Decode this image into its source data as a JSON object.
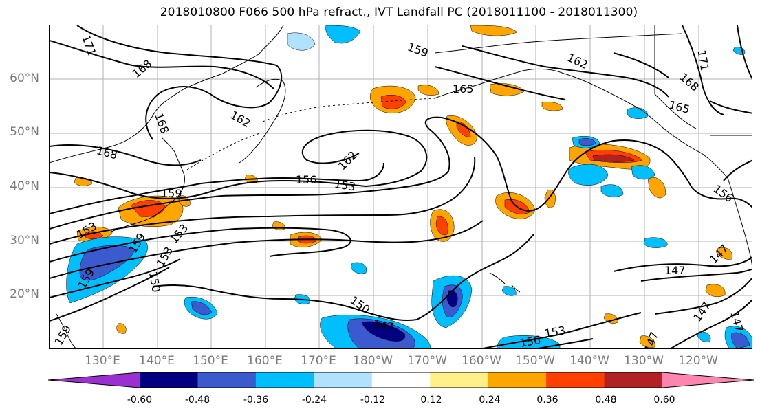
{
  "title": "2018010800 F066 500 hPa refract., IVT Landfall PC (2018011100 - 2018011300)",
  "lat_labels": [
    "60°N",
    "50°N",
    "40°N",
    "30°N",
    "20°N"
  ],
  "lon_labels": [
    "130°E",
    "140°E",
    "150°E",
    "160°E",
    "170°E",
    "180°W",
    "170°W",
    "160°W",
    "150°W",
    "140°W",
    "130°W",
    "120°W"
  ],
  "contour_labels": [
    "171",
    "168",
    "159",
    "162",
    "165",
    "168",
    "171",
    "168",
    "165",
    "162",
    "168",
    "159",
    "156",
    "153",
    "162",
    "159",
    "153",
    "150",
    "159",
    "159",
    "156",
    "147",
    "147",
    "147",
    "150",
    "153",
    "156",
    "153",
    "153",
    "147",
    "147",
    "147"
  ],
  "colorbar": {
    "ticks": [
      "-0.60",
      "-0.48",
      "-0.36",
      "-0.24",
      "-0.12",
      "0.12",
      "0.24",
      "0.36",
      "0.48",
      "0.60"
    ],
    "colors": [
      "#9b30d0",
      "#000080",
      "#3a5acd",
      "#00bfff",
      "#b0e2ff",
      "#ffffff",
      "#fff08a",
      "#ffa500",
      "#ff4000",
      "#b22222",
      "#ff85b0"
    ]
  }
}
